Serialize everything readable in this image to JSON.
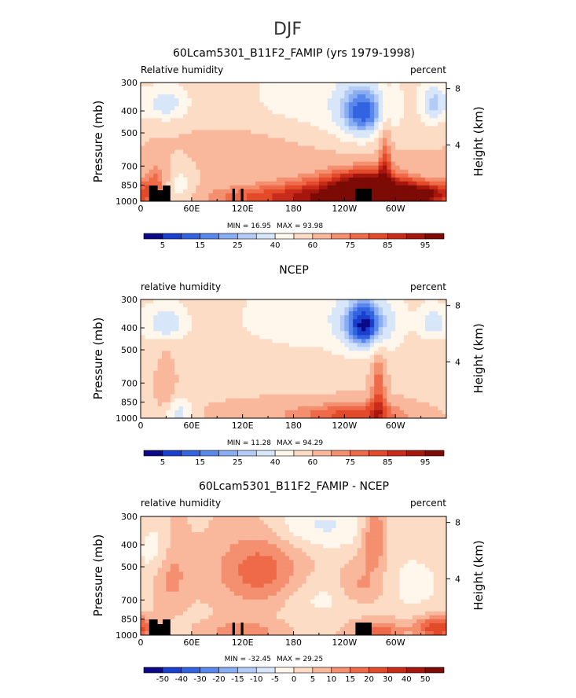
{
  "figure_title": "DJF",
  "chart_data": [
    {
      "type": "heatmap",
      "title": "60Lcam5301_B11F2_FAMIP (yrs 1979-1998)",
      "left_label": "Relative humidity",
      "right_label": "percent",
      "ylabel": "Pressure (mb)",
      "ylabel_right": "Height (km)",
      "x_ticks": [
        "0",
        "60E",
        "120E",
        "180",
        "120W",
        "60W"
      ],
      "x_tick_lon": [
        0,
        60,
        120,
        180,
        240,
        300
      ],
      "xlim": [
        0,
        360
      ],
      "y_ticks": [
        "300",
        "400",
        "500",
        "700",
        "850",
        "1000"
      ],
      "y_tick_p": [
        300,
        400,
        500,
        700,
        850,
        1000
      ],
      "ylim": [
        1000,
        300
      ],
      "height_ticks": [
        "8",
        "4"
      ],
      "height_tick_km": [
        8,
        4
      ],
      "min_label": "MIN =   16.95",
      "max_label": "MAX =   93.98",
      "min": 16.95,
      "max": 93.98,
      "colorbar_labels": [
        "5",
        "15",
        "25",
        "40",
        "60",
        "75",
        "85",
        "95"
      ],
      "colorbar_colors": [
        "#0a0a86",
        "#1a3fcf",
        "#3263e0",
        "#5a87ec",
        "#89adf2",
        "#b3cbf6",
        "#d8e6fa",
        "#fff7ec",
        "#fddcc6",
        "#f9b89c",
        "#f48f6f",
        "#ee6a49",
        "#e34a2a",
        "#c92b1a",
        "#a5160d",
        "#7c0a05"
      ],
      "colorbar_boundaries": [
        2,
        5,
        10,
        15,
        20,
        25,
        30,
        40,
        50,
        60,
        70,
        75,
        80,
        85,
        90,
        95,
        98
      ],
      "background": 60,
      "features": [
        {
          "lon": 255,
          "p": 960,
          "rlon": 90,
          "rp": 200,
          "val": 36
        },
        {
          "lon": 262,
          "p": 410,
          "rlon": 30,
          "rp": 120,
          "val": -38
        },
        {
          "lon": 265,
          "p": 860,
          "rlon": 40,
          "rp": 150,
          "val": 24
        },
        {
          "lon": 288,
          "p": 600,
          "rlon": 8,
          "rp": 300,
          "val": 20
        },
        {
          "lon": 135,
          "p": 960,
          "rlon": 90,
          "rp": 120,
          "val": 16
        },
        {
          "lon": 330,
          "p": 930,
          "rlon": 40,
          "rp": 100,
          "val": 25
        },
        {
          "lon": 210,
          "p": 350,
          "rlon": 120,
          "rp": 180,
          "val": -15
        },
        {
          "lon": 30,
          "p": 370,
          "rlon": 25,
          "rp": 70,
          "val": -25
        },
        {
          "lon": 45,
          "p": 900,
          "rlon": 20,
          "rp": 200,
          "val": -20
        },
        {
          "lon": 125,
          "p": 600,
          "rlon": 70,
          "rp": 150,
          "val": 8
        },
        {
          "lon": 345,
          "p": 370,
          "rlon": 15,
          "rp": 80,
          "val": -28
        },
        {
          "lon": 20,
          "p": 800,
          "rlon": 15,
          "rp": 150,
          "val": 15
        }
      ],
      "topography": [
        [
          10,
          20
        ],
        [
          20,
          20
        ],
        [
          20,
          14
        ],
        [
          26,
          14
        ],
        [
          26,
          20
        ],
        [
          35,
          20
        ],
        [
          35,
          0
        ],
        [
          10,
          0
        ]
      ]
    },
    {
      "type": "heatmap",
      "title": "NCEP",
      "left_label": "relative humidity",
      "right_label": "percent",
      "ylabel": "Pressure (mb)",
      "ylabel_right": "Height (km)",
      "x_ticks": [
        "0",
        "60E",
        "120E",
        "180",
        "120W",
        "60W"
      ],
      "x_tick_lon": [
        0,
        60,
        120,
        180,
        240,
        300
      ],
      "xlim": [
        0,
        360
      ],
      "y_ticks": [
        "300",
        "400",
        "500",
        "700",
        "850",
        "1000"
      ],
      "y_tick_p": [
        300,
        400,
        500,
        700,
        850,
        1000
      ],
      "ylim": [
        1000,
        300
      ],
      "height_ticks": [
        "8",
        "4"
      ],
      "height_tick_km": [
        8,
        4
      ],
      "min_label": "MIN =   11.28",
      "max_label": "MAX =   94.29",
      "min": 11.28,
      "max": 94.29,
      "colorbar_labels": [
        "5",
        "15",
        "25",
        "40",
        "60",
        "75",
        "85",
        "95"
      ],
      "colorbar_colors": [
        "#0a0a86",
        "#1a3fcf",
        "#3263e0",
        "#5a87ec",
        "#89adf2",
        "#b3cbf6",
        "#d8e6fa",
        "#fff7ec",
        "#fddcc6",
        "#f9b89c",
        "#f48f6f",
        "#ee6a49",
        "#e34a2a",
        "#c92b1a",
        "#a5160d",
        "#7c0a05"
      ],
      "colorbar_boundaries": [
        2,
        5,
        10,
        15,
        20,
        25,
        30,
        40,
        50,
        60,
        70,
        75,
        80,
        85,
        90,
        95,
        98
      ],
      "background": 56,
      "features": [
        {
          "lon": 260,
          "p": 980,
          "rlon": 70,
          "rp": 150,
          "val": 25
        },
        {
          "lon": 265,
          "p": 390,
          "rlon": 28,
          "rp": 110,
          "val": -45
        },
        {
          "lon": 280,
          "p": 720,
          "rlon": 10,
          "rp": 300,
          "val": 22
        },
        {
          "lon": 30,
          "p": 720,
          "rlon": 12,
          "rp": 200,
          "val": 15
        },
        {
          "lon": 45,
          "p": 950,
          "rlon": 18,
          "rp": 150,
          "val": -22
        },
        {
          "lon": 30,
          "p": 380,
          "rlon": 22,
          "rp": 70,
          "val": -25
        },
        {
          "lon": 210,
          "p": 360,
          "rlon": 110,
          "rp": 150,
          "val": -12
        },
        {
          "lon": 150,
          "p": 950,
          "rlon": 90,
          "rp": 150,
          "val": 10
        },
        {
          "lon": 345,
          "p": 380,
          "rlon": 15,
          "rp": 60,
          "val": -20
        }
      ],
      "topography": []
    },
    {
      "type": "heatmap",
      "title": "60Lcam5301_B11F2_FAMIP - NCEP",
      "left_label": "relative humidity",
      "right_label": "percent",
      "ylabel": "Pressure (mb)",
      "ylabel_right": "Height (km)",
      "x_ticks": [
        "0",
        "60E",
        "120E",
        "180",
        "120W",
        "60W"
      ],
      "x_tick_lon": [
        0,
        60,
        120,
        180,
        240,
        300
      ],
      "xlim": [
        0,
        360
      ],
      "y_ticks": [
        "300",
        "400",
        "500",
        "700",
        "850",
        "1000"
      ],
      "y_tick_p": [
        300,
        400,
        500,
        700,
        850,
        1000
      ],
      "ylim": [
        1000,
        300
      ],
      "height_ticks": [
        "8",
        "4"
      ],
      "height_tick_km": [
        8,
        4
      ],
      "min_label": "MIN = -32.45",
      "max_label": "MAX =   29.25",
      "min": -32.45,
      "max": 29.25,
      "colorbar_labels": [
        "-50",
        "-40",
        "-30",
        "-20",
        "-15",
        "-10",
        "-5",
        "0",
        "5",
        "10",
        "15",
        "20",
        "30",
        "40",
        "50"
      ],
      "colorbar_colors": [
        "#0a0a86",
        "#1a3fcf",
        "#3263e0",
        "#5a87ec",
        "#89adf2",
        "#b3cbf6",
        "#d8e6fa",
        "#fff7ec",
        "#fddcc6",
        "#f9b89c",
        "#f48f6f",
        "#ee6a49",
        "#e34a2a",
        "#c92b1a",
        "#a5160d",
        "#7c0a05"
      ],
      "colorbar_boundaries": [
        -60,
        -50,
        -40,
        -30,
        -20,
        -15,
        -10,
        -5,
        0,
        5,
        10,
        15,
        20,
        30,
        40,
        50,
        60
      ],
      "background": 4,
      "features": [
        {
          "lon": 140,
          "p": 520,
          "rlon": 50,
          "rp": 200,
          "val": 14
        },
        {
          "lon": 215,
          "p": 680,
          "rlon": 50,
          "rp": 150,
          "val": -6
        },
        {
          "lon": 35,
          "p": 530,
          "rlon": 20,
          "rp": 200,
          "val": 9
        },
        {
          "lon": 275,
          "p": 360,
          "rlon": 15,
          "rp": 140,
          "val": 14
        },
        {
          "lon": 260,
          "p": 610,
          "rlon": 30,
          "rp": 120,
          "val": 9
        },
        {
          "lon": 210,
          "p": 330,
          "rlon": 70,
          "rp": 90,
          "val": -10
        },
        {
          "lon": 20,
          "p": 420,
          "rlon": 20,
          "rp": 120,
          "val": -8
        },
        {
          "lon": 280,
          "p": 960,
          "rlon": 30,
          "rp": 100,
          "val": 14
        },
        {
          "lon": 350,
          "p": 930,
          "rlon": 25,
          "rp": 100,
          "val": 22
        },
        {
          "lon": 120,
          "p": 960,
          "rlon": 40,
          "rp": 100,
          "val": 10
        },
        {
          "lon": 320,
          "p": 600,
          "rlon": 40,
          "rp": 200,
          "val": -6
        }
      ],
      "topography": [
        [
          10,
          20
        ],
        [
          20,
          20
        ],
        [
          20,
          14
        ],
        [
          26,
          14
        ],
        [
          26,
          20
        ],
        [
          35,
          20
        ],
        [
          35,
          0
        ],
        [
          10,
          0
        ]
      ]
    }
  ]
}
